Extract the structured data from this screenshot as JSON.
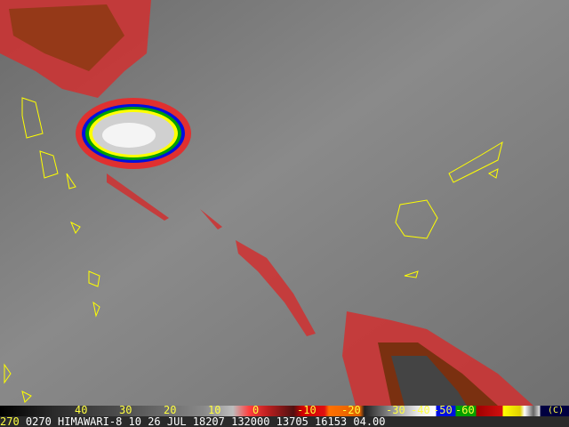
{
  "satellite": "HIMAWARI-8",
  "colorbar": {
    "ticks": [
      "40",
      "30",
      "20",
      "10",
      "0",
      "-10",
      "-20",
      "-30",
      "-40",
      "-50",
      "-60"
    ],
    "unit": "(C)"
  },
  "info_line": {
    "prefix": "270",
    "text": "0270 HIMAWARI-8 10 26 JUL 18207 132000 13705 16153 04.00"
  },
  "colors": {
    "coastline": "#ffff00",
    "background_ir": "#7a7a7a",
    "cold_cloud": "#ff3030"
  }
}
